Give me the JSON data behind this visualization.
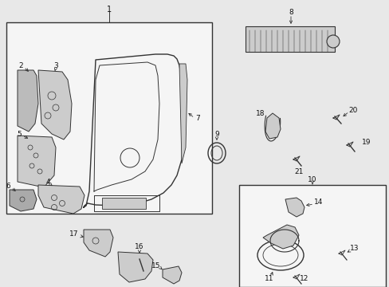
{
  "bg_color": "#e8e8e8",
  "line_color": "#333333",
  "box_bg": "#d8d8d8",
  "white_bg": "#f5f5f5",
  "fig_width": 4.89,
  "fig_height": 3.6,
  "dpi": 100
}
